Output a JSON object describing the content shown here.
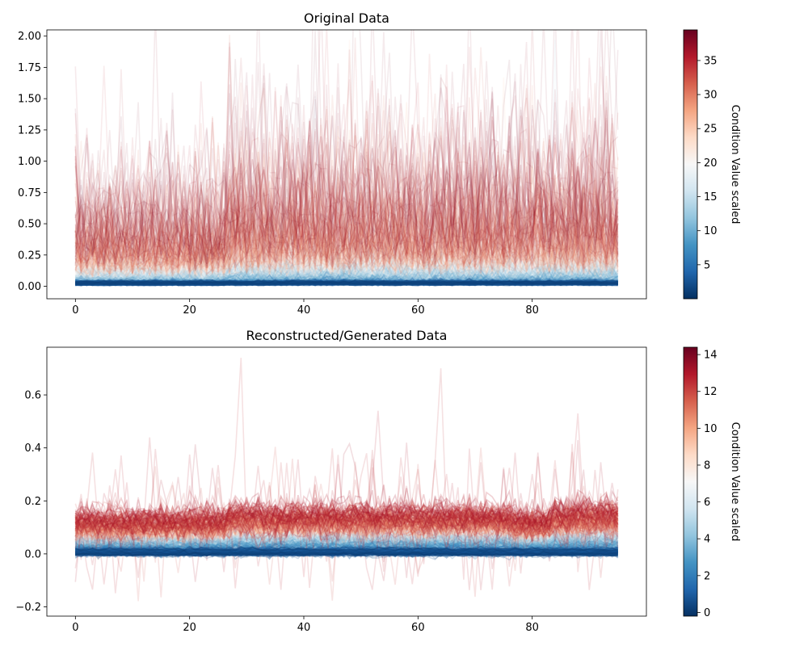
{
  "chart_data": [
    {
      "type": "line",
      "title": "Original Data",
      "xlabel": "",
      "ylabel": "",
      "xlim": [
        -5,
        100
      ],
      "ylim": [
        -0.1,
        2.05
      ],
      "xticks": [
        0,
        20,
        40,
        60,
        80
      ],
      "yticks": [
        0.0,
        0.25,
        0.5,
        0.75,
        1.0,
        1.25,
        1.5,
        1.75,
        2.0
      ],
      "ytick_labels": [
        "0.00",
        "0.25",
        "0.50",
        "0.75",
        "1.00",
        "1.25",
        "1.50",
        "1.75",
        "2.00"
      ],
      "n_points": 96,
      "grid": false,
      "colormap": "RdBu_r",
      "colorbar": {
        "label": "Condition Value scaled",
        "min": 0,
        "max": 39.5,
        "ticks": [
          5,
          10,
          15,
          20,
          25,
          30,
          35
        ]
      },
      "notable_peaks": [
        {
          "x": 48,
          "y": 1.97
        },
        {
          "x": 84,
          "y": 1.97
        },
        {
          "x": 75,
          "y": 1.67
        },
        {
          "x": 42,
          "y": 1.52
        },
        {
          "x": 60,
          "y": 1.31
        }
      ]
    },
    {
      "type": "line",
      "title": "Reconstructed/Generated Data",
      "xlabel": "",
      "ylabel": "",
      "xlim": [
        -5,
        100
      ],
      "ylim": [
        -0.235,
        0.78
      ],
      "xticks": [
        0,
        20,
        40,
        60,
        80
      ],
      "yticks": [
        -0.2,
        0.0,
        0.2,
        0.4,
        0.6
      ],
      "ytick_labels": [
        "−0.2",
        "0.0",
        "0.2",
        "0.4",
        "0.6"
      ],
      "n_points": 96,
      "grid": false,
      "colormap": "RdBu_r",
      "colorbar": {
        "label": "Condition Value scaled",
        "min": -0.2,
        "max": 14.4,
        "ticks": [
          0,
          2,
          4,
          6,
          8,
          10,
          12,
          14
        ]
      },
      "notable_peaks": [
        {
          "x": 29,
          "y": 0.74
        },
        {
          "x": 64,
          "y": 0.7
        },
        {
          "x": 53,
          "y": 0.54
        },
        {
          "x": 88,
          "y": 0.53
        }
      ]
    }
  ]
}
